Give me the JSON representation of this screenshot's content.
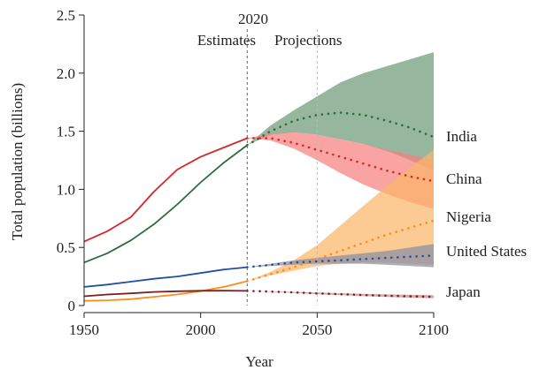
{
  "chart_data": {
    "type": "line",
    "xlabel": "Year",
    "ylabel": "Total population (billions)",
    "xlim": [
      1950,
      2100
    ],
    "ylim": [
      0,
      2.5
    ],
    "xticks": [
      1950,
      2000,
      2050,
      2100
    ],
    "yticks": [
      0,
      0.5,
      1.0,
      1.5,
      2.0,
      2.5
    ],
    "ytick_labels": [
      "0",
      "0.5",
      "1.0",
      "1.5",
      "2.0",
      "2.5"
    ],
    "annotations": {
      "year_2020": "2020",
      "estimates": "Estimates",
      "projections": "Projections"
    },
    "reference_lines": [
      {
        "x": 2020,
        "style": "dashed",
        "color": "#666666"
      },
      {
        "x": 2050,
        "style": "dashed",
        "color": "#bbbbbb"
      }
    ],
    "series": [
      {
        "name": "India",
        "color": "#2e6b3a",
        "band_color": "#6e9b78",
        "estimates": {
          "x": [
            1950,
            1960,
            1970,
            1980,
            1990,
            2000,
            2010,
            2020
          ],
          "y": [
            0.37,
            0.45,
            0.56,
            0.7,
            0.87,
            1.06,
            1.23,
            1.38
          ]
        },
        "projection": {
          "x": [
            2020,
            2030,
            2040,
            2050,
            2060,
            2070,
            2080,
            2090,
            2100
          ],
          "y": [
            1.38,
            1.5,
            1.59,
            1.64,
            1.66,
            1.64,
            1.59,
            1.53,
            1.45
          ]
        },
        "band": {
          "x": [
            2020,
            2030,
            2040,
            2050,
            2060,
            2070,
            2080,
            2090,
            2100
          ],
          "lower": [
            1.38,
            1.47,
            1.49,
            1.47,
            1.43,
            1.39,
            1.33,
            1.25,
            1.16
          ],
          "upper": [
            1.38,
            1.55,
            1.68,
            1.8,
            1.92,
            2.0,
            2.06,
            2.12,
            2.18
          ]
        }
      },
      {
        "name": "China",
        "color": "#d62728",
        "band_color": "#f77f7f",
        "estimates": {
          "x": [
            1950,
            1960,
            1970,
            1980,
            1990,
            2000,
            2010,
            2020
          ],
          "y": [
            0.55,
            0.64,
            0.76,
            0.98,
            1.17,
            1.28,
            1.36,
            1.44
          ]
        },
        "projection": {
          "x": [
            2020,
            2030,
            2040,
            2050,
            2060,
            2070,
            2080,
            2090,
            2100
          ],
          "y": [
            1.44,
            1.44,
            1.4,
            1.34,
            1.28,
            1.22,
            1.16,
            1.11,
            1.07
          ]
        },
        "band": {
          "x": [
            2020,
            2030,
            2040,
            2050,
            2060,
            2070,
            2080,
            2090,
            2100
          ],
          "lower": [
            1.44,
            1.42,
            1.35,
            1.25,
            1.14,
            1.04,
            0.96,
            0.89,
            0.83
          ],
          "upper": [
            1.44,
            1.48,
            1.49,
            1.47,
            1.43,
            1.39,
            1.34,
            1.3,
            1.25
          ]
        }
      },
      {
        "name": "Nigeria",
        "color": "#ff8c1a",
        "band_color": "#fbb56a",
        "estimates": {
          "x": [
            1950,
            1960,
            1970,
            1980,
            1990,
            2000,
            2010,
            2020
          ],
          "y": [
            0.04,
            0.045,
            0.055,
            0.075,
            0.095,
            0.125,
            0.16,
            0.21
          ]
        },
        "projection": {
          "x": [
            2020,
            2030,
            2040,
            2050,
            2060,
            2070,
            2080,
            2090,
            2100
          ],
          "y": [
            0.21,
            0.27,
            0.33,
            0.4,
            0.47,
            0.54,
            0.61,
            0.67,
            0.73
          ]
        },
        "band": {
          "x": [
            2020,
            2030,
            2040,
            2050,
            2060,
            2070,
            2080,
            2090,
            2100
          ],
          "lower": [
            0.21,
            0.26,
            0.3,
            0.34,
            0.36,
            0.37,
            0.37,
            0.36,
            0.35
          ],
          "upper": [
            0.21,
            0.29,
            0.39,
            0.52,
            0.69,
            0.86,
            1.03,
            1.19,
            1.34
          ]
        }
      },
      {
        "name": "United States",
        "color": "#1f4fa5",
        "band_color": "#8a8fa3",
        "estimates": {
          "x": [
            1950,
            1960,
            1970,
            1980,
            1990,
            2000,
            2010,
            2020
          ],
          "y": [
            0.16,
            0.18,
            0.205,
            0.23,
            0.25,
            0.28,
            0.31,
            0.33
          ]
        },
        "projection": {
          "x": [
            2020,
            2030,
            2040,
            2050,
            2060,
            2070,
            2080,
            2090,
            2100
          ],
          "y": [
            0.33,
            0.35,
            0.37,
            0.38,
            0.39,
            0.4,
            0.41,
            0.42,
            0.43
          ]
        },
        "band": {
          "x": [
            2020,
            2030,
            2040,
            2050,
            2060,
            2070,
            2080,
            2090,
            2100
          ],
          "lower": [
            0.33,
            0.34,
            0.35,
            0.36,
            0.36,
            0.36,
            0.35,
            0.34,
            0.33
          ],
          "upper": [
            0.33,
            0.36,
            0.39,
            0.41,
            0.43,
            0.45,
            0.47,
            0.5,
            0.53
          ]
        }
      },
      {
        "name": "Japan",
        "color": "#7a1f1f",
        "band_color": "#c98a8a",
        "estimates": {
          "x": [
            1950,
            1960,
            1970,
            1980,
            1990,
            2000,
            2010,
            2020
          ],
          "y": [
            0.08,
            0.095,
            0.105,
            0.117,
            0.123,
            0.127,
            0.128,
            0.126
          ]
        },
        "projection": {
          "x": [
            2020,
            2030,
            2040,
            2050,
            2060,
            2070,
            2080,
            2090,
            2100
          ],
          "y": [
            0.126,
            0.12,
            0.113,
            0.105,
            0.098,
            0.09,
            0.084,
            0.079,
            0.075
          ]
        },
        "band": {
          "x": [
            2020,
            2030,
            2040,
            2050,
            2060,
            2070,
            2080,
            2090,
            2100
          ],
          "lower": [
            0.126,
            0.118,
            0.108,
            0.098,
            0.09,
            0.081,
            0.074,
            0.068,
            0.063
          ],
          "upper": [
            0.126,
            0.122,
            0.117,
            0.112,
            0.106,
            0.101,
            0.096,
            0.093,
            0.09
          ]
        }
      }
    ]
  }
}
